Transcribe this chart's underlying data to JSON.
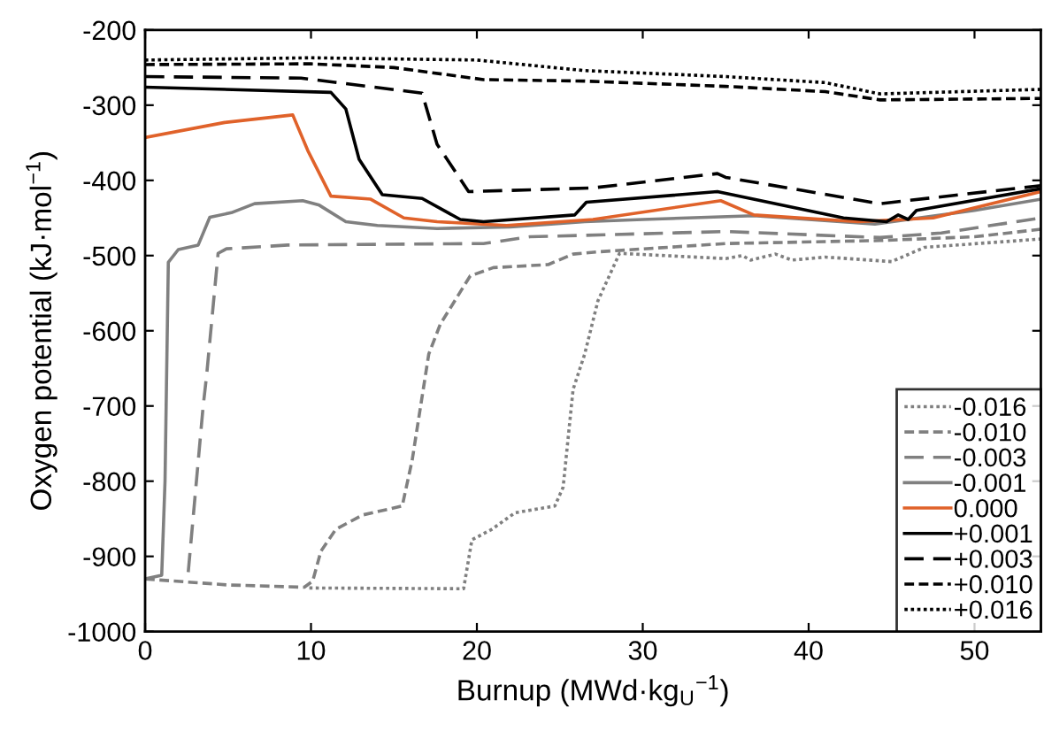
{
  "chart_data": {
    "type": "line",
    "xlabel": "Burnup (MWd·kg$_{U}$$^{−1}$)",
    "ylabel": "Oxygen potential (kJ·mol$^{−1}$)",
    "xlim": [
      0,
      54
    ],
    "xticks": [
      0,
      10,
      20,
      30,
      40,
      50
    ],
    "ylim": [
      -1000,
      -200
    ],
    "yticks": [
      -1000,
      -900,
      -800,
      -700,
      -600,
      -500,
      -400,
      -300,
      -200
    ],
    "grid": false,
    "legend": "bottom right",
    "series": [
      {
        "name": "-0.016",
        "color": "#808080",
        "line_style": "dotted",
        "x": [
          9.9,
          19.2,
          19.7,
          20.9,
          22.3,
          24.7,
          25.2,
          25.8,
          26.5,
          27.3,
          28.6,
          35,
          36,
          36.5,
          38,
          39,
          41,
          45,
          47,
          54
        ],
        "values": [
          -942,
          -943,
          -878,
          -864,
          -842,
          -833,
          -808,
          -678,
          -631,
          -560,
          -497,
          -504,
          -500,
          -506,
          -498,
          -506,
          -502,
          -508,
          -489,
          -478
        ]
      },
      {
        "name": "-0.010",
        "color": "#808080",
        "line_style": "dashdot",
        "x": [
          0,
          5,
          9.6,
          10.1,
          10.6,
          11.5,
          13.1,
          15.5,
          16.1,
          17.1,
          17.8,
          19.6,
          21,
          24.3,
          25.8,
          27.3,
          35,
          44.3,
          50,
          54
        ],
        "values": [
          -930,
          -938,
          -941,
          -933,
          -893,
          -864,
          -845,
          -833,
          -772,
          -631,
          -591,
          -527,
          -516,
          -512,
          -498,
          -495,
          -484,
          -480,
          -475,
          -465
        ]
      },
      {
        "name": "-0.003",
        "color": "#808080",
        "line_style": "dashed",
        "x": [
          2.6,
          3.5,
          3.7,
          4.4,
          4.9,
          8.6,
          20.4,
          23.2,
          35,
          44.3,
          48,
          54
        ],
        "values": [
          -921,
          -700,
          -661,
          -497,
          -491,
          -486,
          -484,
          -475,
          -468,
          -476,
          -470,
          -450
        ]
      },
      {
        "name": "-0.001",
        "color": "#808080",
        "line_style": "solid",
        "x": [
          0,
          1,
          1.2,
          1.4,
          2,
          3.2,
          3.9,
          5.2,
          6.6,
          9.5,
          10.5,
          12.1,
          14,
          17.6,
          22,
          26.5,
          30,
          36.7,
          40,
          44,
          50,
          54
        ],
        "values": [
          -930,
          -925,
          -800,
          -509,
          -492,
          -486,
          -449,
          -443,
          -431,
          -427,
          -433,
          -455,
          -460,
          -464,
          -462,
          -455,
          -452,
          -447,
          -452,
          -458,
          -440,
          -425
        ]
      },
      {
        "name": "0.000",
        "color": "#e0622a",
        "line_style": "solid",
        "x": [
          0,
          4.8,
          8.9,
          9.8,
          11.2,
          13.6,
          15.6,
          17.6,
          21.8,
          27,
          34.7,
          36.7,
          43,
          47.5,
          54
        ],
        "values": [
          -343,
          -323,
          -313,
          -360,
          -421,
          -425,
          -450,
          -455,
          -460,
          -452,
          -427,
          -446,
          -455,
          -450,
          -415
        ]
      },
      {
        "name": "+0.001",
        "color": "#000000",
        "line_style": "solid",
        "x": [
          0,
          11.2,
          12.1,
          12.9,
          14.3,
          16.7,
          19,
          20.4,
          25.9,
          26.6,
          34.5,
          42.1,
          44.7,
          45.4,
          46,
          46.5,
          54
        ],
        "values": [
          -276,
          -283,
          -305,
          -372,
          -419,
          -424,
          -452,
          -455,
          -446,
          -429,
          -415,
          -450,
          -455,
          -446,
          -452,
          -440,
          -411
        ]
      },
      {
        "name": "+0.003",
        "color": "#000000",
        "line_style": "dashed",
        "x": [
          0,
          9.4,
          16.7,
          17.6,
          19.5,
          27,
          34.5,
          35,
          44.3,
          54
        ],
        "values": [
          -262,
          -264,
          -284,
          -352,
          -415,
          -410,
          -391,
          -396,
          -431,
          -407
        ]
      },
      {
        "name": "+0.010",
        "color": "#000000",
        "line_style": "dashdot",
        "x": [
          0,
          10,
          15,
          20.4,
          26.5,
          35,
          41,
          44.3,
          54
        ],
        "values": [
          -246,
          -245,
          -250,
          -266,
          -268,
          -275,
          -282,
          -293,
          -291
        ]
      },
      {
        "name": "+0.016",
        "color": "#000000",
        "line_style": "dotted",
        "x": [
          0,
          10,
          20,
          26.5,
          35,
          41,
          44.3,
          54
        ],
        "values": [
          -240,
          -237,
          -240,
          -254,
          -262,
          -270,
          -285,
          -279
        ]
      }
    ]
  }
}
